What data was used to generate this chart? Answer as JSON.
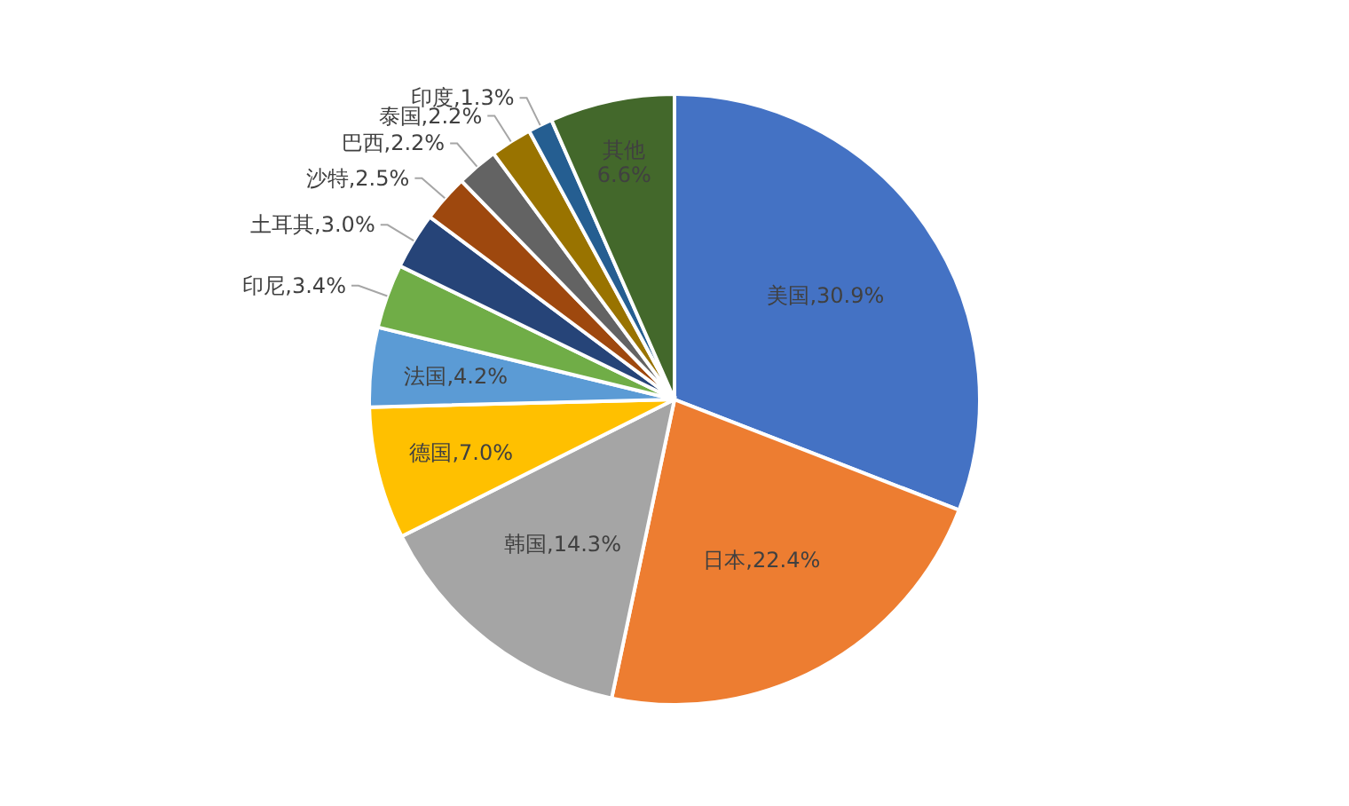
{
  "chart_data": {
    "type": "pie",
    "categories": [
      "美国",
      "日本",
      "韩国",
      "德国",
      "法国",
      "印尼",
      "土耳其",
      "沙特",
      "巴西",
      "泰国",
      "印度",
      "其他"
    ],
    "values": [
      30.9,
      22.4,
      14.3,
      7.0,
      4.2,
      3.4,
      3.0,
      2.5,
      2.2,
      2.2,
      1.3,
      6.6
    ],
    "colors": [
      "#4472c4",
      "#ed7d31",
      "#a5a5a5",
      "#ffc000",
      "#5b9bd5",
      "#70ad47",
      "#264478",
      "#9e480e",
      "#636363",
      "#997300",
      "#255e91",
      "#43682b"
    ],
    "value_labels": [
      ",30.9%",
      ",22.4%",
      ",14.3%",
      ",7.0%",
      ",4.2%",
      ",3.4%",
      ",3.0%",
      ",2.5%",
      ",2.2%",
      ",2.2%",
      ",1.3%",
      "6.6%"
    ],
    "legend": false
  }
}
